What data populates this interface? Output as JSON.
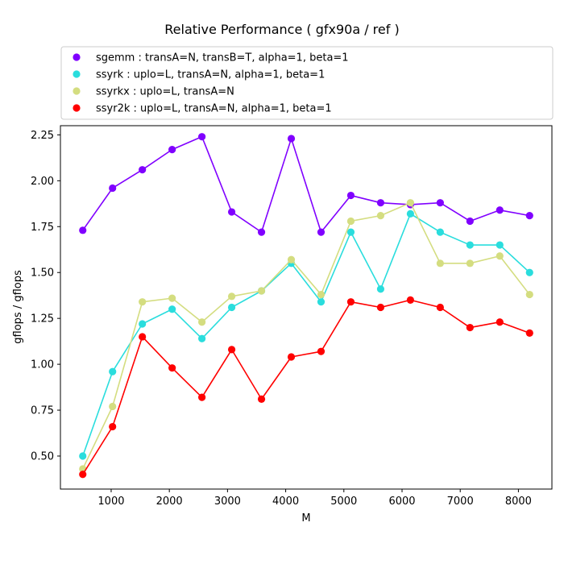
{
  "chart_data": {
    "type": "line",
    "title": "Relative Performance ( gfx90a /  ref )",
    "xlabel": "M",
    "ylabel": "gflops / gflops",
    "xlim": [
      128,
      8576
    ],
    "ylim": [
      0.32,
      2.3
    ],
    "xticks": [
      1000,
      2000,
      3000,
      4000,
      5000,
      6000,
      7000,
      8000
    ],
    "yticks": [
      0.5,
      0.75,
      1.0,
      1.25,
      1.5,
      1.75,
      2.0,
      2.25
    ],
    "ytick_labels": [
      "0.50",
      "0.75",
      "1.00",
      "1.25",
      "1.50",
      "1.75",
      "2.00",
      "2.25"
    ],
    "legend_position": "above-plot",
    "grid": false,
    "x": [
      512,
      1024,
      1536,
      2048,
      2560,
      3072,
      3584,
      4096,
      4608,
      5120,
      5632,
      6144,
      6656,
      7168,
      7680,
      8192
    ],
    "series": [
      {
        "name": "sgemm :  transA=N, transB=T, alpha=1, beta=1",
        "color": "#8000ff",
        "values": [
          1.73,
          1.96,
          2.06,
          2.17,
          2.24,
          1.83,
          1.72,
          2.23,
          1.72,
          1.92,
          1.88,
          1.87,
          1.88,
          1.78,
          1.84,
          1.81
        ]
      },
      {
        "name": "ssyrk :  uplo=L, transA=N, alpha=1, beta=1",
        "color": "#2adddd",
        "values": [
          0.5,
          0.96,
          1.22,
          1.3,
          1.14,
          1.31,
          1.4,
          1.55,
          1.34,
          1.72,
          1.41,
          1.82,
          1.72,
          1.65,
          1.65,
          1.5
        ]
      },
      {
        "name": "ssyrkx :  uplo=L, transA=N",
        "color": "#d4dd80",
        "values": [
          0.43,
          0.77,
          1.34,
          1.36,
          1.23,
          1.37,
          1.4,
          1.57,
          1.38,
          1.78,
          1.81,
          1.88,
          1.55,
          1.55,
          1.59,
          1.38
        ]
      },
      {
        "name": "ssyr2k :  uplo=L, transA=N, alpha=1, beta=1",
        "color": "#ff0000",
        "values": [
          0.4,
          0.66,
          1.15,
          0.98,
          0.82,
          1.08,
          0.81,
          1.04,
          1.07,
          1.34,
          1.31,
          1.35,
          1.31,
          1.2,
          1.23,
          1.17
        ]
      }
    ]
  }
}
